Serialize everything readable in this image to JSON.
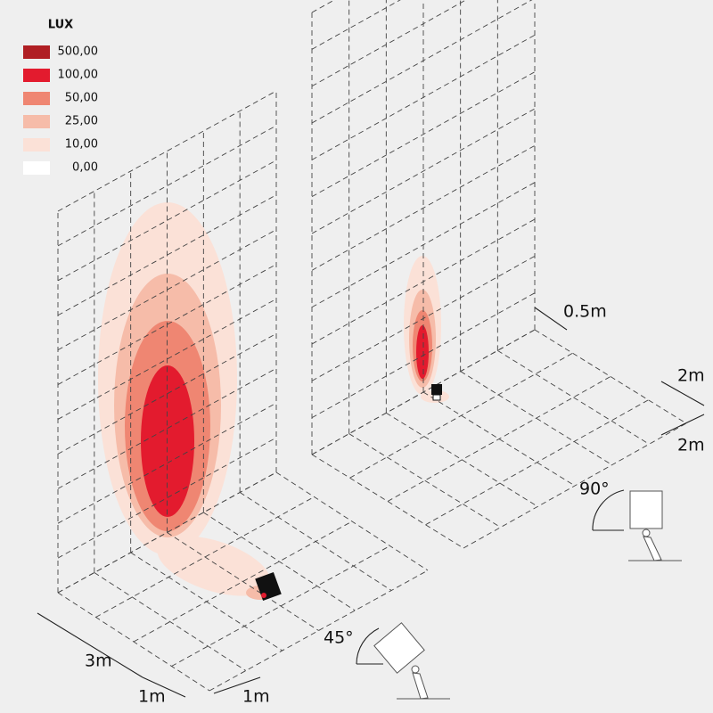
{
  "legend": {
    "title": "LUX",
    "items": [
      {
        "label": "500,00",
        "color": "#b01f24"
      },
      {
        "label": "100,00",
        "color": "#e31b2e"
      },
      {
        "label": "50,00",
        "color": "#ef8672"
      },
      {
        "label": "25,00",
        "color": "#f6bca9"
      },
      {
        "label": "10,00",
        "color": "#fbe1d7"
      },
      {
        "label": "0,00",
        "color": "#ffffff"
      }
    ]
  },
  "dimensions": {
    "left_depth": "3m",
    "left_width": "1m",
    "left_height": "1m",
    "right_offset": "0.5m",
    "right_height": "2m",
    "right_width": "2m"
  },
  "angles": {
    "right": "90°",
    "left": "45°"
  }
}
